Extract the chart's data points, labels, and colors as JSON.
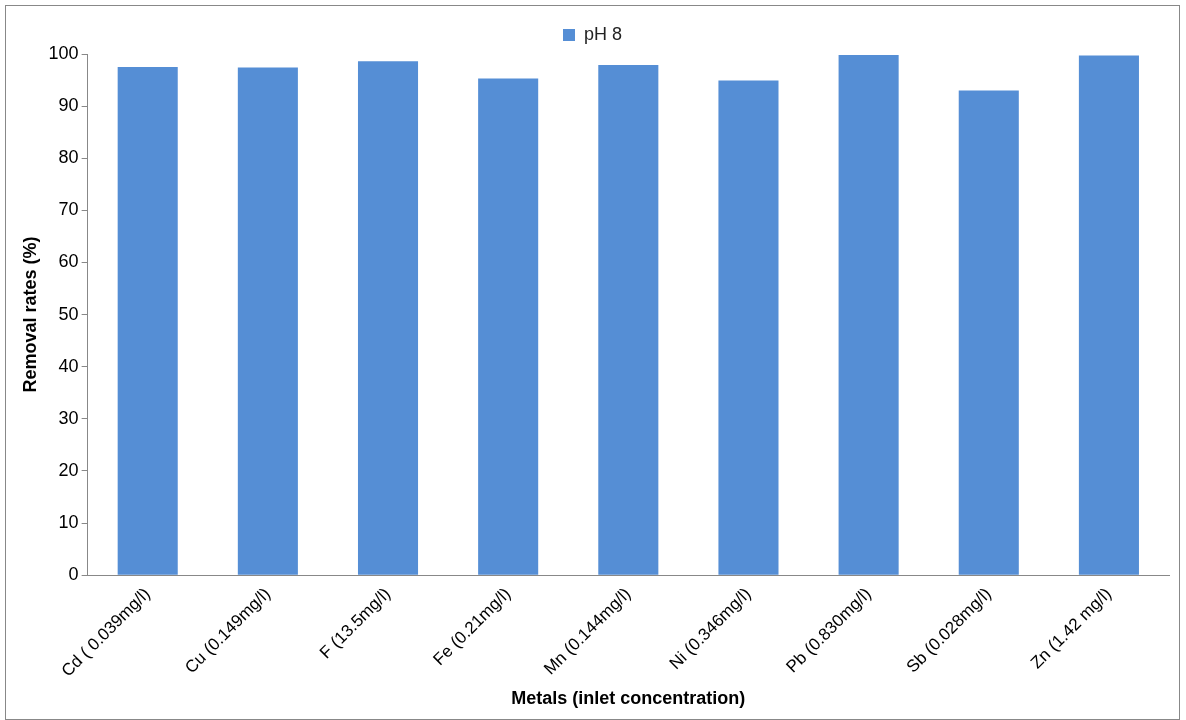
{
  "chart_data": {
    "type": "bar",
    "xlabel": "Metals (inlet concentration)",
    "ylabel": "Removal rates (%)",
    "categories": [
      "Cd ( 0.039mg/l)",
      "Cu (0.149mg/l)",
      "F (13.5mg/l)",
      "Fe (0.21mg/l)",
      "Mn (0.144mg/l)",
      "Ni (0.346mg/l)",
      "Pb (0.830mg/l)",
      "Sb (0.028mg/l)",
      "Zn (1.42 mg/l)"
    ],
    "series": [
      {
        "name": "pH 8",
        "color": "#558ed5",
        "values": [
          97.5,
          97.4,
          98.6,
          95.3,
          97.9,
          94.9,
          99.8,
          93.0,
          99.7
        ]
      }
    ],
    "ylim": [
      0,
      100
    ],
    "yticks": [
      0,
      10,
      20,
      30,
      40,
      50,
      60,
      70,
      80,
      90,
      100
    ],
    "grid": false,
    "legend": "top"
  }
}
